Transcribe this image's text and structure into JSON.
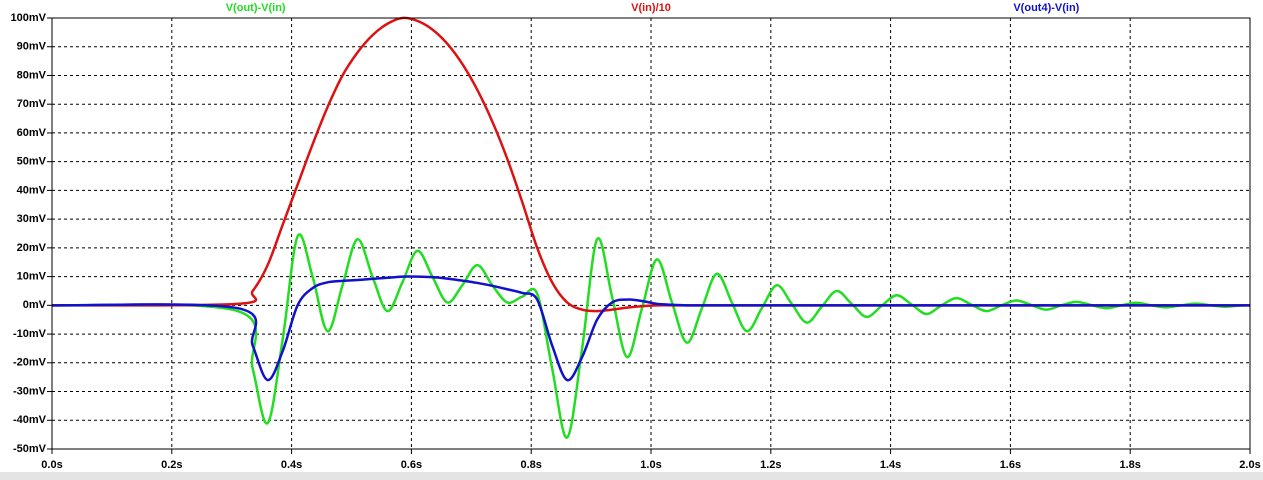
{
  "chart_data": {
    "type": "line",
    "x": [
      0,
      0.31,
      0.335,
      0.36,
      0.385,
      0.41,
      0.435,
      0.46,
      0.485,
      0.51,
      0.535,
      0.56,
      0.585,
      0.61,
      0.635,
      0.66,
      0.685,
      0.71,
      0.735,
      0.76,
      0.785,
      0.81,
      0.835,
      0.86,
      0.885,
      0.91,
      0.935,
      0.96,
      0.985,
      1.01,
      1.035,
      1.06,
      1.085,
      1.11,
      1.135,
      1.16,
      1.185,
      1.21,
      1.235,
      1.26,
      1.285,
      1.31,
      1.335,
      1.36,
      1.385,
      1.41,
      1.435,
      1.46,
      1.485,
      1.51,
      1.535,
      1.56,
      1.585,
      1.61,
      1.635,
      1.66,
      1.685,
      1.71,
      1.735,
      1.76,
      1.785,
      1.81,
      1.835,
      1.86,
      1.885,
      1.91,
      1.935,
      1.96,
      1.985,
      2.0
    ],
    "series": [
      {
        "name": "V(out)-V(in)",
        "color": "#22dd22",
        "values": [
          0,
          -2,
          -22,
          -41,
          -12,
          24,
          10,
          -9,
          7,
          23,
          10,
          -2,
          8,
          19,
          10,
          1,
          7,
          14,
          7,
          1,
          3,
          4,
          -22,
          -46,
          -15,
          23,
          3,
          -18,
          -1,
          16,
          1,
          -13,
          -1,
          11,
          1,
          -9,
          -1,
          7,
          0.5,
          -6,
          -0.5,
          5,
          0.5,
          -4,
          -0.2,
          3.5,
          0.3,
          -3,
          0,
          2.5,
          0.2,
          -2,
          0,
          1.7,
          0.1,
          -1.5,
          0,
          1.2,
          0.1,
          -1,
          0,
          0.9,
          0,
          -0.7,
          0,
          0.6,
          0,
          -0.5,
          0,
          0
        ]
      },
      {
        "name": "V(in)/10",
        "color": "#dd1111",
        "values": [
          0,
          0.5,
          5,
          14,
          28,
          42,
          56,
          69,
          80,
          88,
          94,
          98,
          100,
          99,
          96,
          91,
          84,
          75,
          64,
          51,
          36,
          20,
          8,
          1,
          -1.5,
          -2,
          -1.5,
          -0.8,
          -0.3,
          0,
          0,
          0,
          0,
          0,
          0,
          0,
          0,
          0,
          0,
          0,
          0,
          0,
          0,
          0,
          0,
          0,
          0,
          0,
          0,
          0,
          0,
          0,
          0,
          0,
          0,
          0,
          0,
          0,
          0,
          0,
          0,
          0,
          0,
          0,
          0,
          0,
          0,
          0,
          0,
          0
        ]
      },
      {
        "name": "V(out4)-V(in)",
        "color": "#1111cc",
        "values": [
          0,
          -1,
          -14,
          -26,
          -16,
          0,
          6,
          8,
          8.5,
          8.8,
          9.2,
          9.6,
          10,
          10,
          9.8,
          9.3,
          8.6,
          7.8,
          6.8,
          5.6,
          4.3,
          2,
          -14,
          -26,
          -18,
          -5,
          1,
          2,
          1.5,
          0.5,
          0.2,
          0,
          0,
          0,
          0,
          0,
          0,
          0,
          0,
          0,
          0,
          0,
          0,
          0,
          0,
          0,
          0,
          0,
          0,
          0,
          0,
          0,
          0,
          0,
          0,
          0,
          0,
          0,
          0,
          0,
          0,
          0,
          0,
          0,
          0,
          0,
          0,
          0,
          0,
          0
        ]
      }
    ],
    "xlim": [
      0,
      2.0
    ],
    "xticks": [
      {
        "value": 0,
        "label": "0.0s"
      },
      {
        "value": 0.2,
        "label": "0.2s"
      },
      {
        "value": 0.4,
        "label": "0.4s"
      },
      {
        "value": 0.6,
        "label": "0.6s"
      },
      {
        "value": 0.8,
        "label": "0.8s"
      },
      {
        "value": 1.0,
        "label": "1.0s"
      },
      {
        "value": 1.2,
        "label": "1.2s"
      },
      {
        "value": 1.4,
        "label": "1.4s"
      },
      {
        "value": 1.6,
        "label": "1.6s"
      },
      {
        "value": 1.8,
        "label": "1.8s"
      },
      {
        "value": 2.0,
        "label": "2.0s"
      }
    ],
    "ylim": [
      -50,
      100
    ],
    "yticks": [
      {
        "value": -50,
        "label": "-50mV"
      },
      {
        "value": -40,
        "label": "-40mV"
      },
      {
        "value": -30,
        "label": "-30mV"
      },
      {
        "value": -20,
        "label": "-20mV"
      },
      {
        "value": -10,
        "label": "-10mV"
      },
      {
        "value": 0,
        "label": "0mV"
      },
      {
        "value": 10,
        "label": "10mV"
      },
      {
        "value": 20,
        "label": "20mV"
      },
      {
        "value": 30,
        "label": "30mV"
      },
      {
        "value": 40,
        "label": "40mV"
      },
      {
        "value": 50,
        "label": "50mV"
      },
      {
        "value": 60,
        "label": "60mV"
      },
      {
        "value": 70,
        "label": "70mV"
      },
      {
        "value": 80,
        "label": "80mV"
      },
      {
        "value": 90,
        "label": "90mV"
      },
      {
        "value": 100,
        "label": "100mV"
      }
    ],
    "grid": true
  }
}
